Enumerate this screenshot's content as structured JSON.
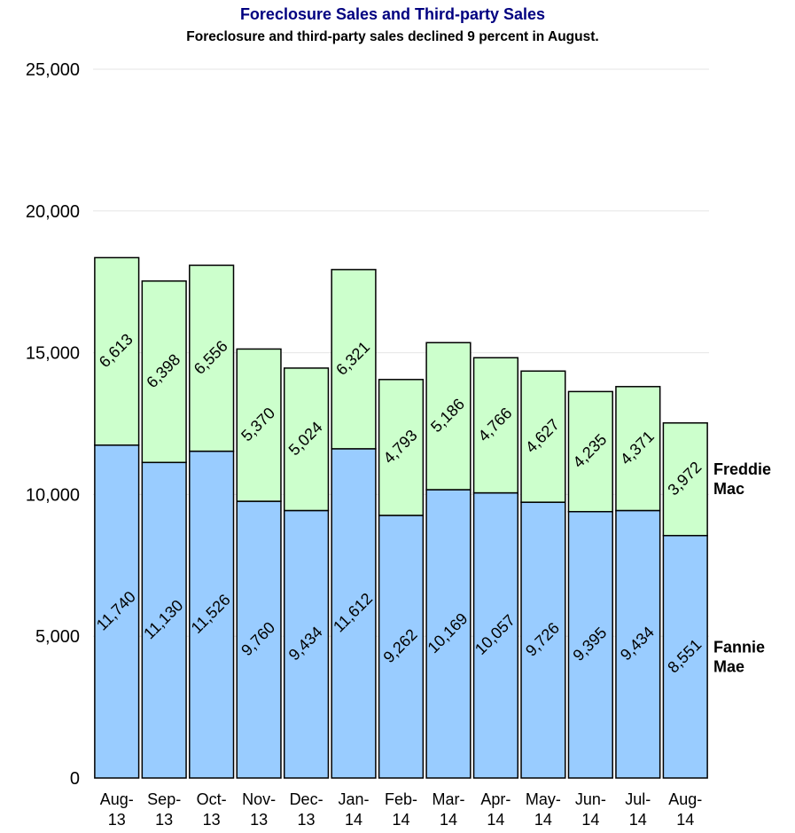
{
  "chart_data": {
    "type": "bar",
    "stacked": true,
    "title": "Foreclosure Sales and Third-party Sales",
    "subtitle": "Foreclosure and third-party sales declined 9 percent in August.",
    "categories": [
      [
        "Aug-",
        "13"
      ],
      [
        "Sep-",
        "13"
      ],
      [
        "Oct-",
        "13"
      ],
      [
        "Nov-",
        "13"
      ],
      [
        "Dec-",
        "13"
      ],
      [
        "Jan-",
        "14"
      ],
      [
        "Feb-",
        "14"
      ],
      [
        "Mar-",
        "14"
      ],
      [
        "Apr-",
        "14"
      ],
      [
        "May-",
        "14"
      ],
      [
        "Jun-",
        "14"
      ],
      [
        "Jul-",
        "14"
      ],
      [
        "Aug-",
        "14"
      ]
    ],
    "series": [
      {
        "name": "Fannie Mae",
        "legend_lines": [
          "Fannie",
          "Mae"
        ],
        "color": "#99ccff",
        "values": [
          11740,
          11130,
          11526,
          9760,
          9434,
          11612,
          9262,
          10169,
          10057,
          9726,
          9395,
          9434,
          8551
        ],
        "labels": [
          "11,740",
          "11,130",
          "11,526",
          "9,760",
          "9,434",
          "11,612",
          "9,262",
          "10,169",
          "10,057",
          "9,726",
          "9,395",
          "9,434",
          "8,551"
        ]
      },
      {
        "name": "Freddie Mac",
        "legend_lines": [
          "Freddie",
          "Mac"
        ],
        "color": "#ccffcc",
        "values": [
          6613,
          6398,
          6556,
          5370,
          5024,
          6321,
          4793,
          5186,
          4766,
          4627,
          4235,
          4371,
          3972
        ],
        "labels": [
          "6,613",
          "6,398",
          "6,556",
          "5,370",
          "5,024",
          "6,321",
          "4,793",
          "5,186",
          "4,766",
          "4,627",
          "4,235",
          "4,371",
          "3,972"
        ]
      }
    ],
    "ylim": [
      0,
      25000
    ],
    "yticks": [
      0,
      5000,
      10000,
      15000,
      20000,
      25000
    ],
    "ytick_labels": [
      "0",
      "5,000",
      "10,000",
      "15,000",
      "20,000",
      "25,000"
    ],
    "grid": true,
    "legend_position": "right"
  }
}
